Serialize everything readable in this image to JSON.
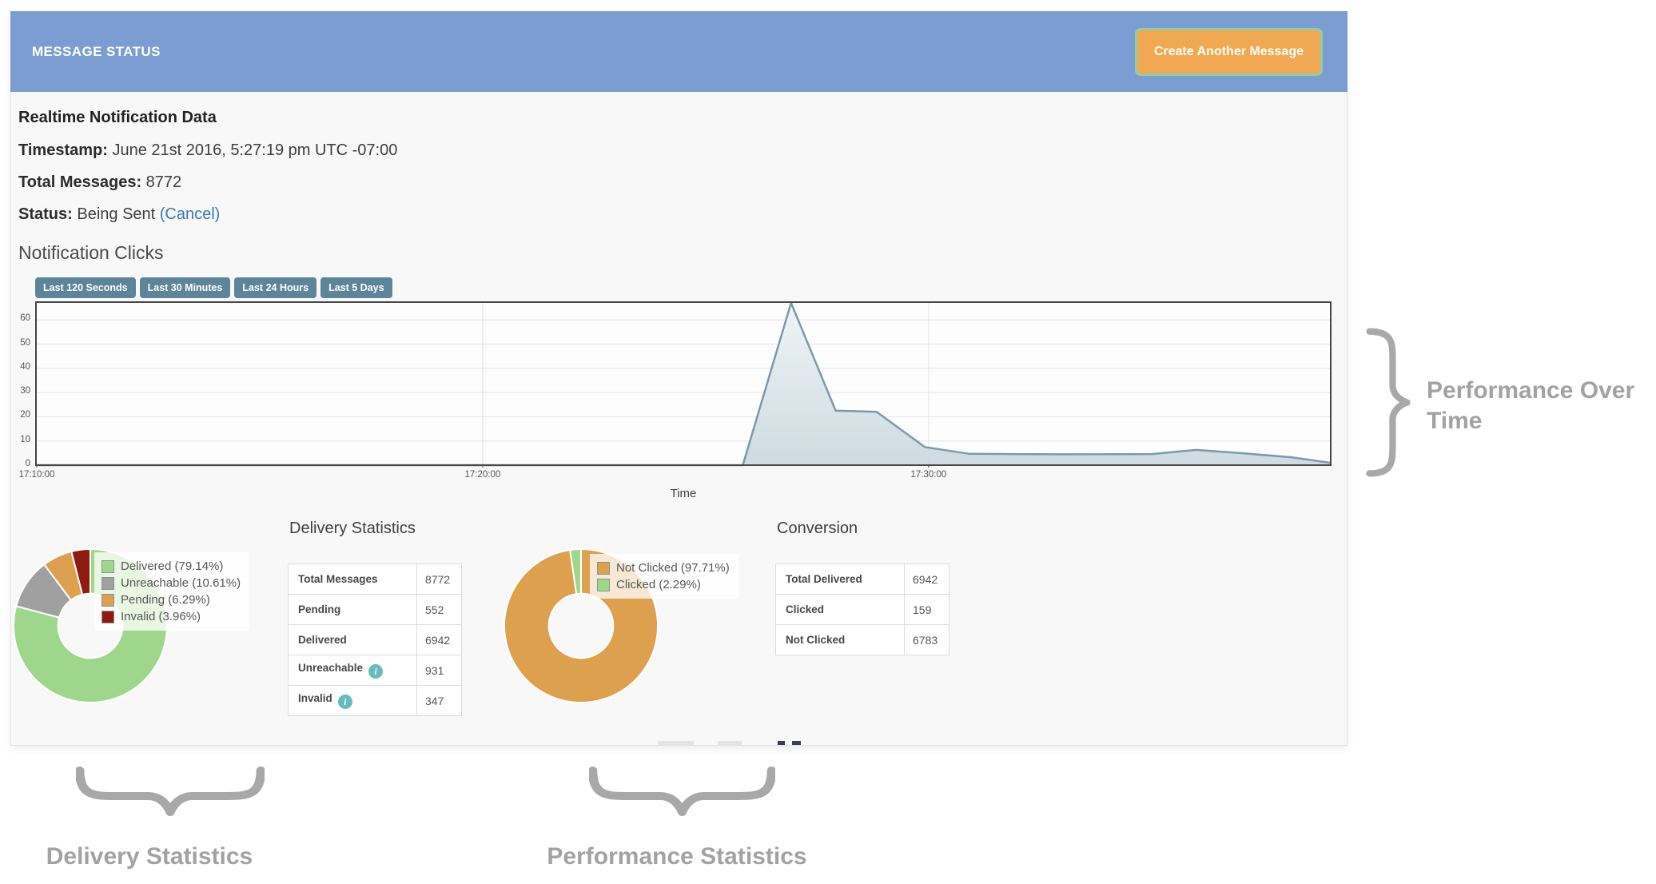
{
  "header": {
    "title": "MESSAGE STATUS",
    "create_button": "Create Another Message"
  },
  "info": {
    "heading": "Realtime Notification Data",
    "timestamp_label": "Timestamp:",
    "timestamp_value": " June 21st 2016, 5:27:19 pm UTC -07:00",
    "total_label": "Total Messages:",
    "total_value": " 8772",
    "status_label": "Status:",
    "status_value": " Being Sent ",
    "cancel_link": "(Cancel)"
  },
  "clicks_section": {
    "title": "Notification Clicks",
    "range_buttons": [
      "Last 120 Seconds",
      "Last 30 Minutes",
      "Last 24 Hours",
      "Last 5 Days"
    ]
  },
  "chart_data": [
    {
      "type": "area",
      "title": "Notification Clicks",
      "xlabel": "Time",
      "x_start": "17:10:00",
      "x_span_seconds": 1740,
      "x_ticks": [
        "17:10:00",
        "17:20:00",
        "17:30:00"
      ],
      "y_ticks": [
        0,
        10,
        20,
        30,
        40,
        50,
        60
      ],
      "ylim": [
        0,
        67
      ],
      "grid": true,
      "line_color": "#7b99a9",
      "fill_top": "#eef3f6",
      "fill_bottom": "#c9d7de",
      "series": [
        {
          "name": "Notification Clicks",
          "points": [
            [
              "17:10:00",
              0
            ],
            [
              "17:25:50",
              0
            ],
            [
              "17:26:55",
              67
            ],
            [
              "17:27:55",
              22.5
            ],
            [
              "17:28:50",
              22
            ],
            [
              "17:29:55",
              7.5
            ],
            [
              "17:30:55",
              4.7
            ],
            [
              "17:33:00",
              4.5
            ],
            [
              "17:35:00",
              4.6
            ],
            [
              "17:36:00",
              6.3
            ],
            [
              "17:37:00",
              5
            ],
            [
              "17:38:10",
              3.2
            ],
            [
              "17:39:00",
              1
            ]
          ]
        }
      ]
    },
    {
      "type": "pie",
      "title": "Delivery Statistics",
      "labels": [
        "Delivered (79.14%)",
        "Unreachable (10.61%)",
        "Pending (6.29%)",
        "Invalid (3.96%)"
      ],
      "values": [
        79.14,
        10.61,
        6.29,
        3.96
      ],
      "colors": [
        "#9ed78c",
        "#a0a0a0",
        "#dda04f",
        "#8e1b10"
      ],
      "legend_position": "overlay-top-right",
      "donut_hole_ratio": 0.42
    },
    {
      "type": "pie",
      "title": "Conversion",
      "labels": [
        "Not Clicked (97.71%)",
        "Clicked (2.29%)"
      ],
      "values": [
        97.71,
        2.29
      ],
      "colors": [
        "#dda04f",
        "#9ed78c"
      ],
      "legend_position": "overlay-top-right",
      "donut_hole_ratio": 0.42
    }
  ],
  "delivery": {
    "heading": "Delivery Statistics",
    "rows": [
      {
        "label": "Total Messages",
        "value": "8772",
        "info": false
      },
      {
        "label": "Pending",
        "value": "552",
        "info": false
      },
      {
        "label": "Delivered",
        "value": "6942",
        "info": false
      },
      {
        "label": "Unreachable",
        "value": "931",
        "info": true
      },
      {
        "label": "Invalid",
        "value": "347",
        "info": true
      }
    ],
    "info_icon_glyph": "i"
  },
  "conversion": {
    "heading": "Conversion",
    "rows": [
      {
        "label": "Total Delivered",
        "value": "6942",
        "info": false
      },
      {
        "label": "Clicked",
        "value": "159",
        "info": false
      },
      {
        "label": "Not Clicked",
        "value": "6783",
        "info": false
      }
    ]
  },
  "annotations": {
    "right": "Performance Over Time",
    "bottom_left": "Delivery Statistics",
    "bottom_right": "Performance Statistics"
  },
  "colors": {
    "header_bg": "#7b9dd2",
    "create_button_bg": "#f0a952",
    "create_button_outline": "#92cda6",
    "range_button_bg": "#5c8599",
    "link": "#377ab7",
    "annotation": "#a2a2a2",
    "info_icon": "#66bcba"
  }
}
